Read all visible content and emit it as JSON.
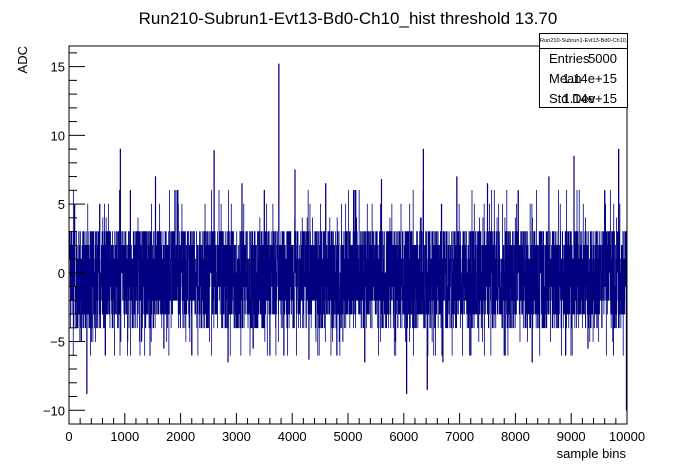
{
  "chart_data": {
    "type": "line",
    "title": "Run210-Subrun1-Evt13-Bd0-Ch10_hist threshold 13.70",
    "xlabel": "sample bins",
    "ylabel": "ADC",
    "xlim": [
      0,
      10000
    ],
    "ylim": [
      -11,
      16.5
    ],
    "xticks": [
      "0",
      "1000",
      "2000",
      "3000",
      "4000",
      "5000",
      "6000",
      "7000",
      "8000",
      "9000",
      "10000"
    ],
    "yticks": [
      "-10",
      "-5",
      "0",
      "5",
      "10",
      "15"
    ],
    "series": [
      {
        "color": "#000080",
        "n_samples": 5000,
        "band_min": -4,
        "band_max": 3.5,
        "spikes": [
          {
            "x": 100,
            "y": 5
          },
          {
            "x": 220,
            "y": -5
          },
          {
            "x": 320,
            "y": -8.8
          },
          {
            "x": 550,
            "y": 5
          },
          {
            "x": 650,
            "y": -6
          },
          {
            "x": 920,
            "y": 9
          },
          {
            "x": 1100,
            "y": 6
          },
          {
            "x": 1300,
            "y": -5
          },
          {
            "x": 1550,
            "y": 7
          },
          {
            "x": 1700,
            "y": -5.5
          },
          {
            "x": 1900,
            "y": 6
          },
          {
            "x": 2200,
            "y": -6
          },
          {
            "x": 2600,
            "y": 8.9
          },
          {
            "x": 2850,
            "y": -6.5
          },
          {
            "x": 3100,
            "y": 6.5
          },
          {
            "x": 3300,
            "y": -5.5
          },
          {
            "x": 3500,
            "y": 6
          },
          {
            "x": 3600,
            "y": -6
          },
          {
            "x": 3760,
            "y": 15.2
          },
          {
            "x": 3850,
            "y": -6
          },
          {
            "x": 4050,
            "y": 7.5
          },
          {
            "x": 4300,
            "y": -6.3
          },
          {
            "x": 4600,
            "y": 6.5
          },
          {
            "x": 4800,
            "y": -6
          },
          {
            "x": 5100,
            "y": 6
          },
          {
            "x": 5300,
            "y": -6.5
          },
          {
            "x": 5600,
            "y": 6.8
          },
          {
            "x": 5850,
            "y": -5
          },
          {
            "x": 6050,
            "y": -8.8
          },
          {
            "x": 6350,
            "y": 9
          },
          {
            "x": 6420,
            "y": -8.5
          },
          {
            "x": 6700,
            "y": -6.5
          },
          {
            "x": 6950,
            "y": 7
          },
          {
            "x": 7200,
            "y": -6
          },
          {
            "x": 7500,
            "y": 6.5
          },
          {
            "x": 7800,
            "y": -6
          },
          {
            "x": 8050,
            "y": 6
          },
          {
            "x": 8300,
            "y": -6.5
          },
          {
            "x": 8600,
            "y": 7
          },
          {
            "x": 8900,
            "y": -6
          },
          {
            "x": 9050,
            "y": 8.5
          },
          {
            "x": 9300,
            "y": -5.5
          },
          {
            "x": 9600,
            "y": 6
          },
          {
            "x": 9850,
            "y": 9
          },
          {
            "x": 9990,
            "y": -10
          }
        ]
      }
    ],
    "stats": {
      "title": "Run210-Subrun1-Evt13-Bd0-Ch10_hist",
      "rows": [
        {
          "label": "Entries",
          "value": "5000"
        },
        {
          "label": "Mean",
          "value": "1.14e+15"
        },
        {
          "label": "Std Dev",
          "value": "1.14e+15"
        }
      ]
    },
    "grid": false,
    "legend": "top-right"
  }
}
